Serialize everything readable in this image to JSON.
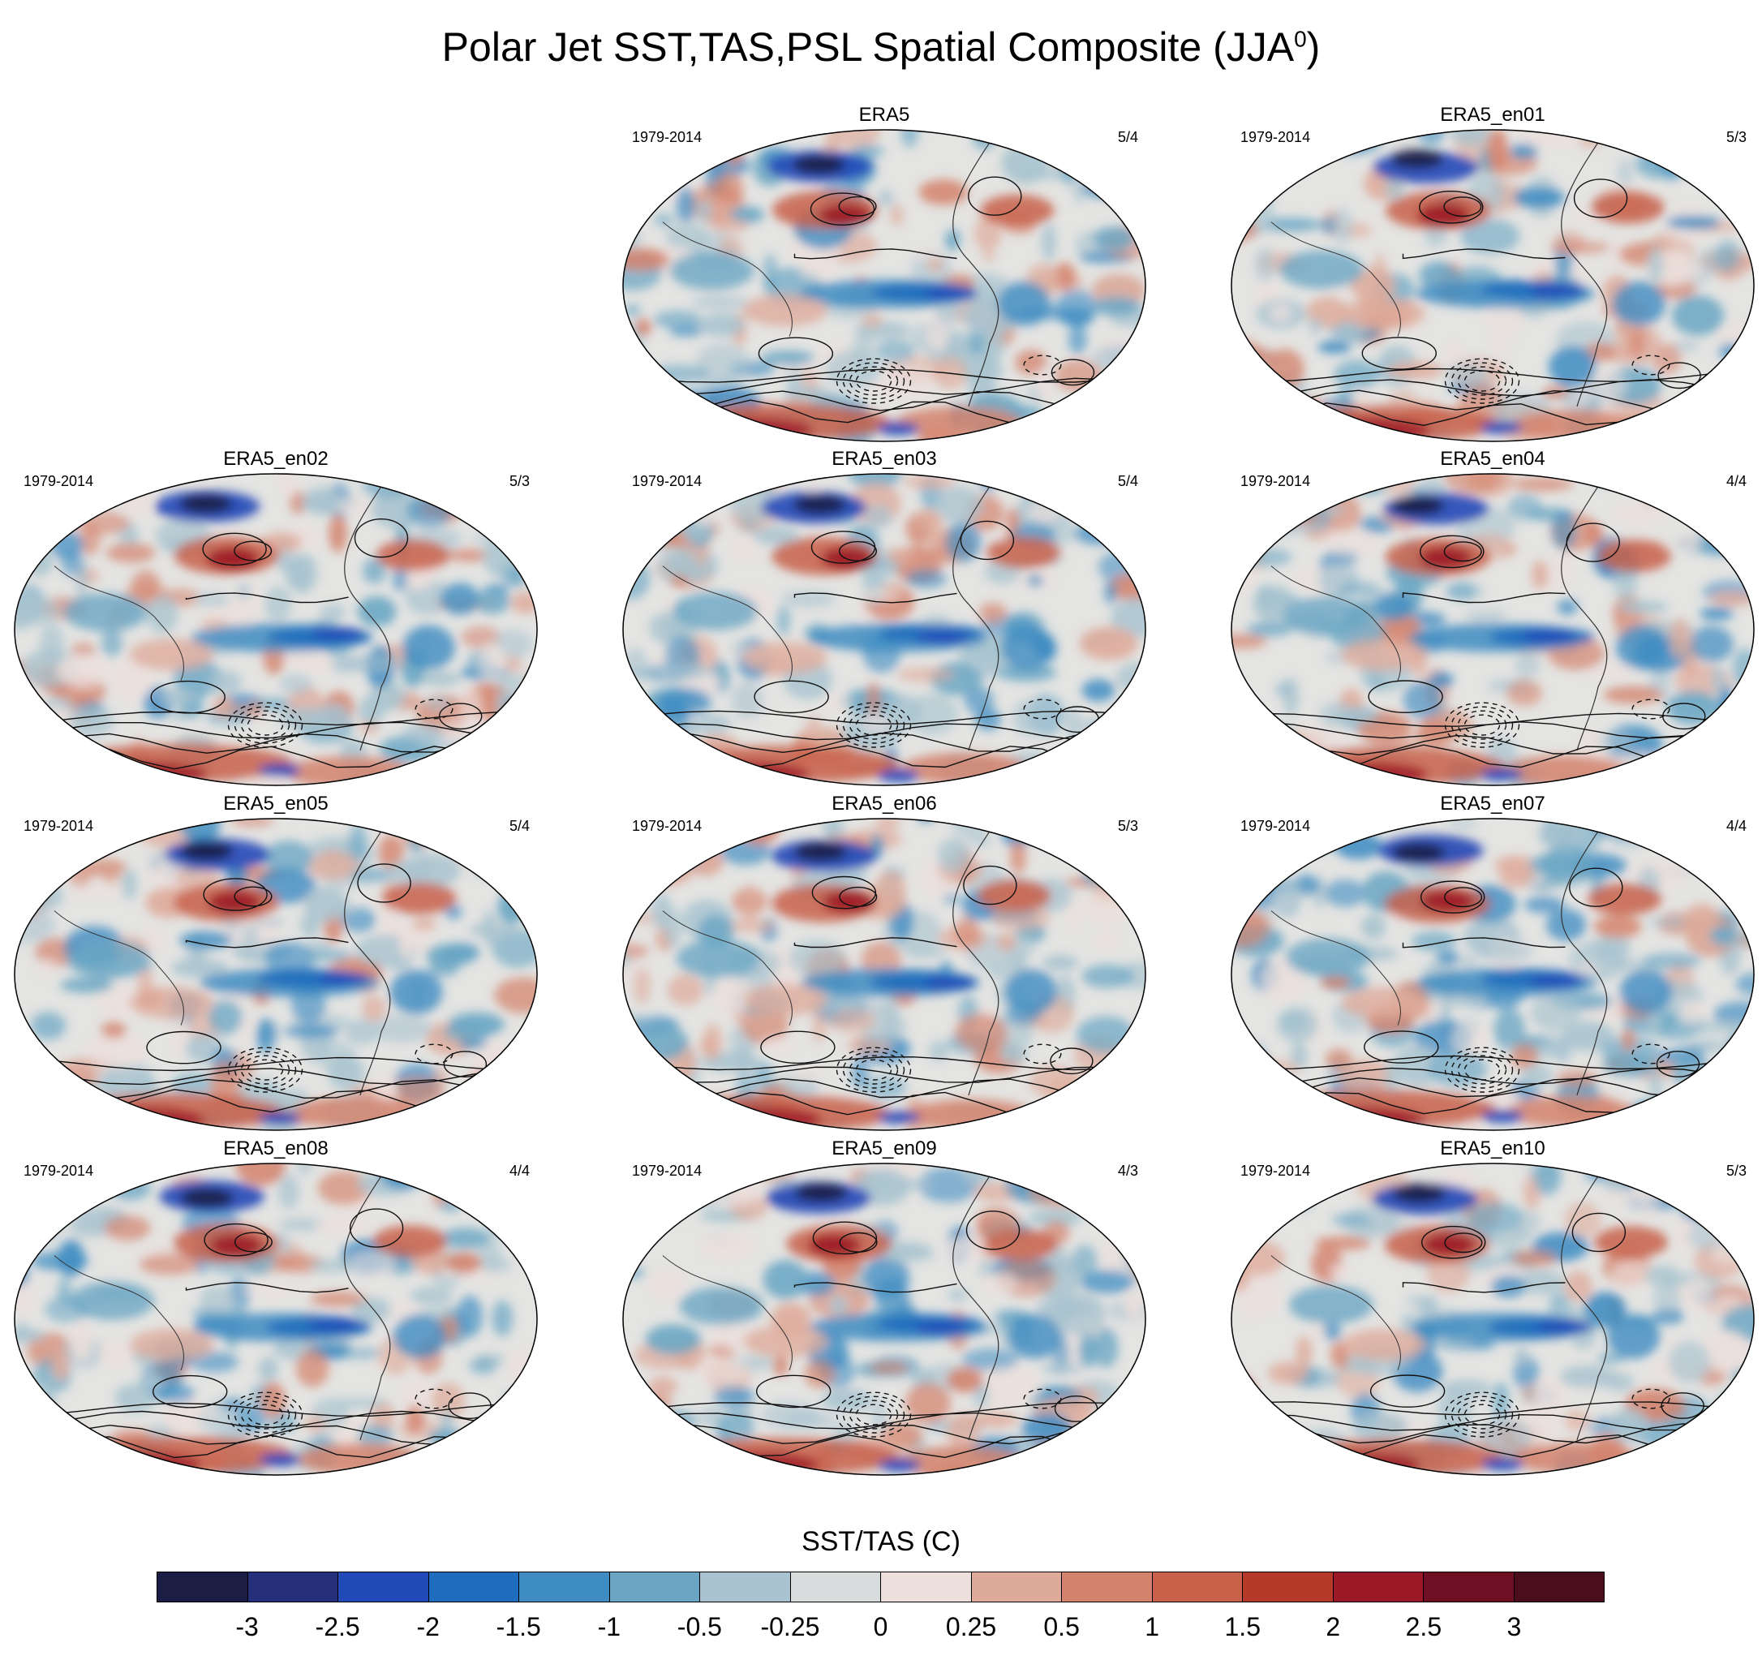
{
  "title": {
    "main": "Polar Jet SST,TAS,PSL Spatial Composite (JJA",
    "superscript": "0",
    "tail": ")"
  },
  "chart_data": {
    "type": "heatmap",
    "description_type": "panel grid of global map composites with contour overlays",
    "panels": [
      {
        "title": "ERA5",
        "period": "1979-2014",
        "count": "5/4"
      },
      {
        "title": "ERA5_en01",
        "period": "1979-2014",
        "count": "5/3"
      },
      {
        "title": "ERA5_en02",
        "period": "1979-2014",
        "count": "5/3"
      },
      {
        "title": "ERA5_en03",
        "period": "1979-2014",
        "count": "5/4"
      },
      {
        "title": "ERA5_en04",
        "period": "1979-2014",
        "count": "4/4"
      },
      {
        "title": "ERA5_en05",
        "period": "1979-2014",
        "count": "5/4"
      },
      {
        "title": "ERA5_en06",
        "period": "1979-2014",
        "count": "5/3"
      },
      {
        "title": "ERA5_en07",
        "period": "1979-2014",
        "count": "4/4"
      },
      {
        "title": "ERA5_en08",
        "period": "1979-2014",
        "count": "4/4"
      },
      {
        "title": "ERA5_en09",
        "period": "1979-2014",
        "count": "4/3"
      },
      {
        "title": "ERA5_en10",
        "period": "1979-2014",
        "count": "5/3"
      }
    ],
    "colorbar": {
      "title": "SST/TAS (C)",
      "levels": [
        "-3",
        "-2.5",
        "-2",
        "-1.5",
        "-1",
        "-0.5",
        "-0.25",
        "0",
        "0.25",
        "0.5",
        "1",
        "1.5",
        "2",
        "2.5",
        "3"
      ],
      "colors": [
        "#1b1d44",
        "#26307a",
        "#2249b8",
        "#1f6bbd",
        "#3e8cc2",
        "#6aa6c4",
        "#a8c3cf",
        "#d9dcdd",
        "#ecdfdc",
        "#deab9b",
        "#d4836c",
        "#c8604a",
        "#b63a2a",
        "#9b1826",
        "#6e0f23",
        "#4a0d1b"
      ]
    }
  }
}
